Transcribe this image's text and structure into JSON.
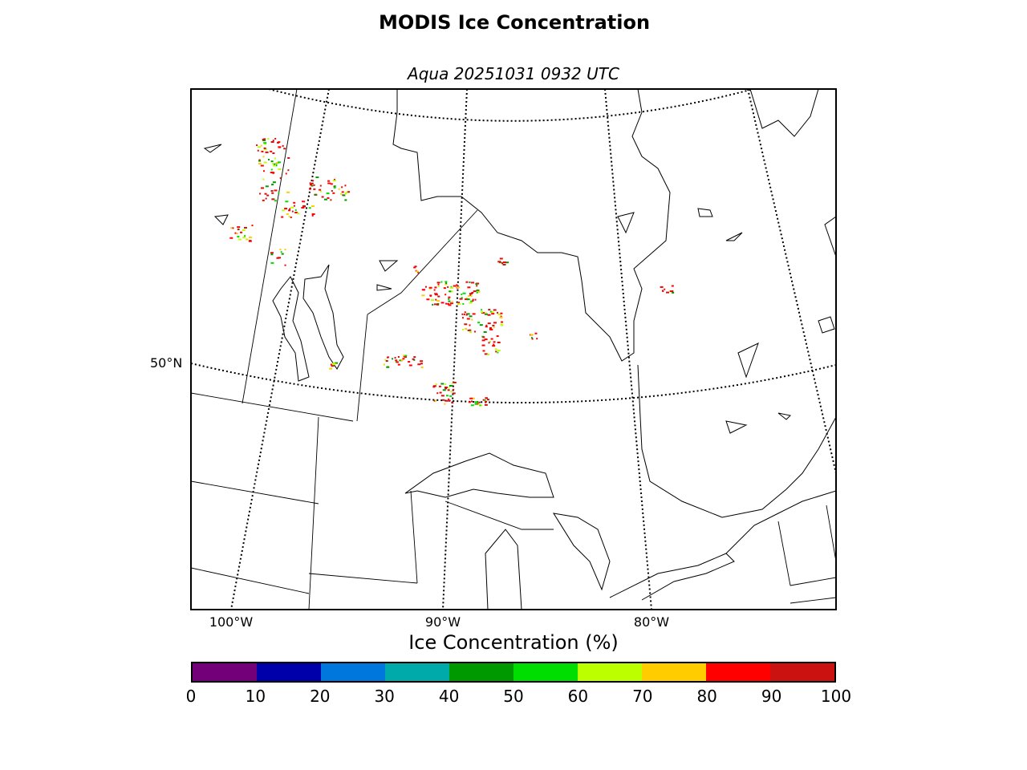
{
  "title": "MODIS Ice Concentration",
  "subtitle": "Aqua 20251031 0932 UTC",
  "map": {
    "lat_labels": [
      "50°N"
    ],
    "lon_labels": [
      "100°W",
      "90°W",
      "80°W"
    ]
  },
  "colorbar": {
    "label": "Ice Concentration (%)",
    "ticks": [
      "0",
      "10",
      "20",
      "30",
      "40",
      "50",
      "60",
      "70",
      "80",
      "90",
      "100"
    ],
    "colors": [
      "#730079",
      "#0000aa",
      "#0077dd",
      "#00aaaa",
      "#009900",
      "#00dd00",
      "#bbff00",
      "#ffcc00",
      "#ff0000",
      "#cc1111"
    ]
  }
}
